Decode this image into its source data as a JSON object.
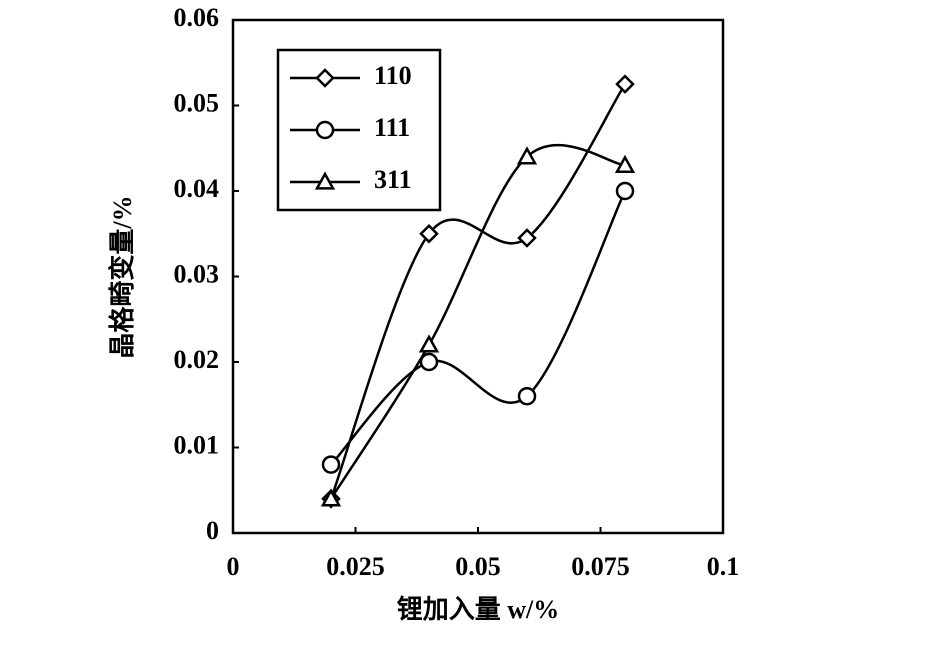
{
  "chart_data": {
    "type": "line",
    "xlabel": "锂加入量 w/%",
    "ylabel": "晶格畸变量/%",
    "x": [
      0.02,
      0.04,
      0.06,
      0.08
    ],
    "series": [
      {
        "name": "110",
        "color": "#000000",
        "marker": "diamond",
        "values": [
          0.004,
          0.035,
          0.0345,
          0.0525
        ]
      },
      {
        "name": "111",
        "color": "#000000",
        "marker": "circle",
        "values": [
          0.008,
          0.02,
          0.016,
          0.04
        ]
      },
      {
        "name": "311",
        "color": "#000000",
        "marker": "triangle",
        "values": [
          0.004,
          0.022,
          0.044,
          0.043
        ]
      }
    ],
    "xlim": [
      0,
      0.1
    ],
    "xticks": [
      0,
      0.025,
      0.05,
      0.075,
      0.1
    ],
    "ylim": [
      0,
      0.06
    ],
    "yticks": [
      0,
      0.01,
      0.02,
      0.03,
      0.04,
      0.05,
      0.06
    ],
    "smooth": true,
    "grid": false,
    "legend": "upper left"
  }
}
